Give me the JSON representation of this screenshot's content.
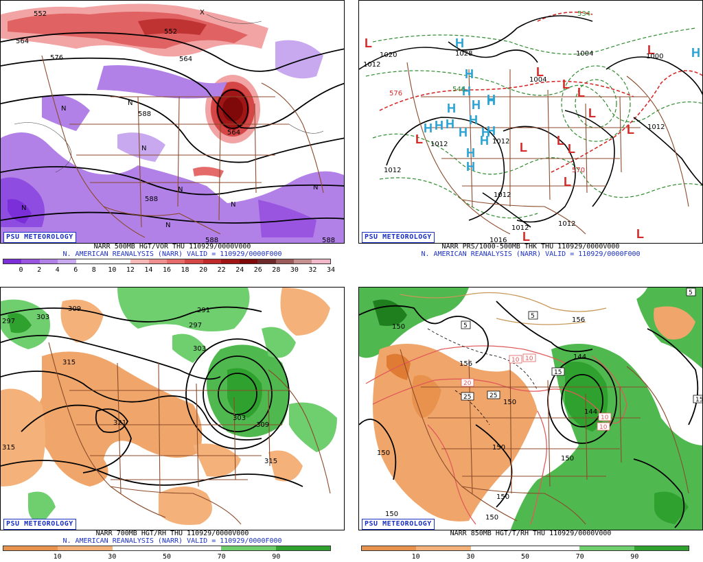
{
  "badge": "PSU METEOROLOGY",
  "panels": [
    {
      "line1": "NARR 500MB HGT/VOR THU 110929/0000V000",
      "line2": "N. AMERICAN REANALYSIS (NARR) VALID = 110929/0000F000",
      "ticks": [
        "0",
        "2",
        "4",
        "6",
        "8",
        "10",
        "12",
        "14",
        "16",
        "18",
        "20",
        "22",
        "24",
        "26",
        "28",
        "30",
        "32",
        "34"
      ],
      "colors": [
        "#7a2fd8",
        "#9a55e0",
        "#b181e8",
        "#c8a9f0",
        "#ffffff",
        "#ffffff",
        "#ffffff",
        "#f6b7b7",
        "#ef8f8f",
        "#e56a6a",
        "#d54646",
        "#c02a2a",
        "#a01515",
        "#7f0808",
        "#6e2a2a",
        "#9b5b5b",
        "#c49090",
        "#f0b8c8"
      ],
      "map_labels": [
        "552",
        "552",
        "564",
        "576",
        "588",
        "588",
        "588",
        "588",
        "564",
        "564",
        "N",
        "N",
        "N",
        "N",
        "N",
        "N",
        "N",
        "N",
        "X"
      ]
    },
    {
      "line1": "NARR PRS/1000-500MB THK THU 110929/0000V000",
      "line2": "N. AMERICAN REANALYSIS (NARR) VALID = 110929/0000F000",
      "map_labels": [
        "1020",
        "1028",
        "1004",
        "1004",
        "1000",
        "1012",
        "1012",
        "1012",
        "1012",
        "1012",
        "1012",
        "1012",
        "1012",
        "1016",
        "576",
        "570",
        "534",
        "546"
      ],
      "highs": [
        "H",
        "H",
        "H",
        "H",
        "H",
        "H",
        "H",
        "H",
        "H",
        "H",
        "H",
        "H",
        "H",
        "H",
        "H",
        "H",
        "H",
        "H"
      ],
      "lows": [
        "L",
        "L",
        "L",
        "L",
        "L",
        "L",
        "L",
        "L",
        "L",
        "L",
        "L",
        "L",
        "L",
        "L"
      ]
    },
    {
      "line1": "NARR 700MB HGT/RH THU 110929/0000V000",
      "line2": "N. AMERICAN REANALYSIS (NARR) VALID = 110929/0000F000",
      "ticks": [
        "10",
        "30",
        "50",
        "70",
        "90"
      ],
      "colors": [
        "#e8924e",
        "#f4b27a",
        "#ffffff",
        "#ffffff",
        "#6fcf6f",
        "#2ea12e"
      ],
      "map_labels": [
        "297",
        "303",
        "309",
        "291",
        "297",
        "303",
        "315",
        "321",
        "303",
        "309",
        "315",
        "315"
      ]
    },
    {
      "line1": "NARR 850MB HGT/T/RH THU 110929/0000V000",
      "ticks": [
        "10",
        "30",
        "50",
        "70",
        "90"
      ],
      "colors": [
        "#e8924e",
        "#f4b27a",
        "#ffffff",
        "#ffffff",
        "#6fcf6f",
        "#2ea12e"
      ],
      "map_labels": [
        "150",
        "150",
        "150",
        "150",
        "150",
        "150",
        "144",
        "144",
        "150",
        "156",
        "156",
        "150"
      ],
      "boxed": [
        "5",
        "5",
        "10",
        "15",
        "15",
        "20",
        "25",
        "25",
        "10",
        "10",
        "10",
        "5"
      ]
    }
  ]
}
